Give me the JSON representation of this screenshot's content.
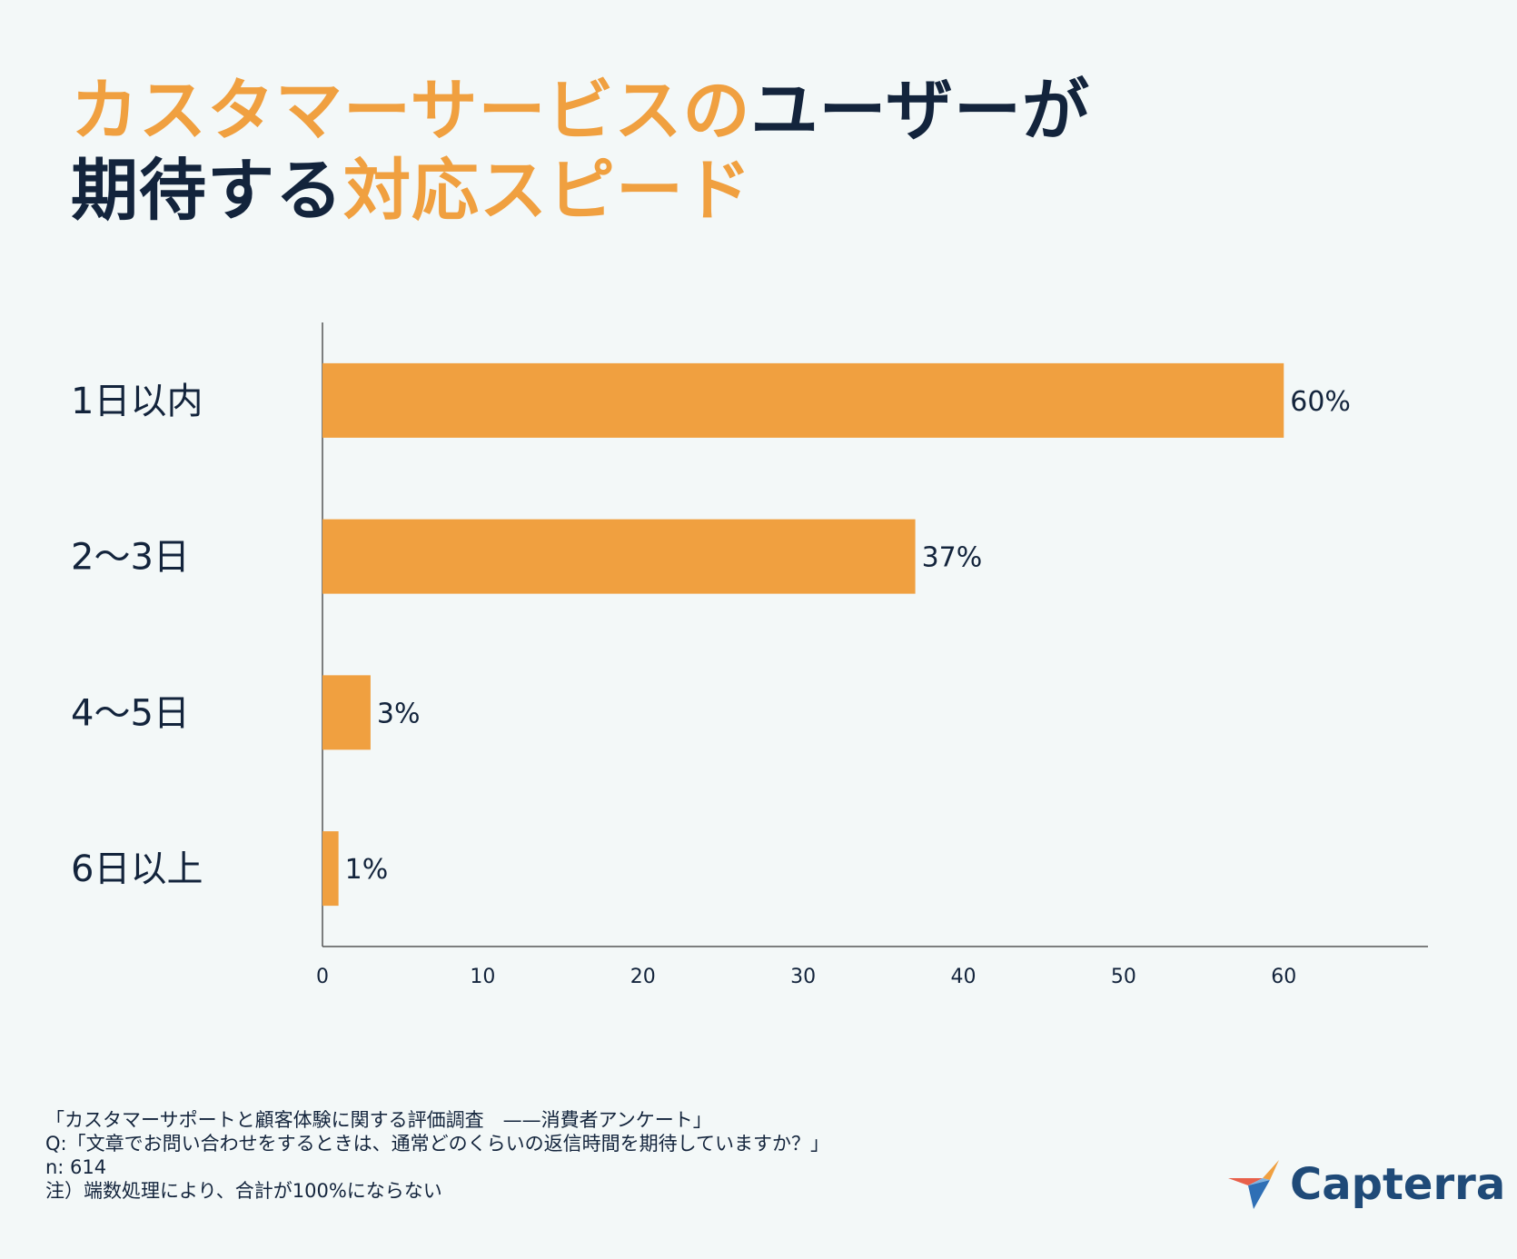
{
  "title": {
    "line1": [
      {
        "text": "カスタマーサービスの",
        "style": "accent"
      },
      {
        "text": "ユーザーが",
        "style": "dark"
      }
    ],
    "line2": [
      {
        "text": "期待する",
        "style": "dark"
      },
      {
        "text": "対応スピード",
        "style": "accent"
      }
    ]
  },
  "colors": {
    "accent": "#f0a040",
    "dark": "#13243c",
    "background": "#f3f8f8",
    "brand": "#1f4a78"
  },
  "chart_data": {
    "type": "bar",
    "orientation": "horizontal",
    "categories": [
      "1日以内",
      "2〜3日",
      "4〜5日",
      "6日以上"
    ],
    "values": [
      60,
      37,
      3,
      1
    ],
    "value_labels": [
      "60%",
      "37%",
      "3%",
      "1%"
    ],
    "xlim": [
      0,
      69
    ],
    "xticks": [
      0,
      10,
      20,
      30,
      40,
      50,
      60
    ],
    "grid": false,
    "bar_color": "#f0a040"
  },
  "footnote": {
    "source": "「カスタマーサポートと顧客体験に関する評価調査　——消費者アンケート」",
    "question": "Q:「文章でお問い合わせをするときは、通常どのくらいの返信時間を期待していますか？」",
    "n": "n: 614",
    "note": "注）端数処理により、合計が100%にならない"
  },
  "logo": {
    "text": "Capterra",
    "icon": "capterra-arrow-icon"
  }
}
